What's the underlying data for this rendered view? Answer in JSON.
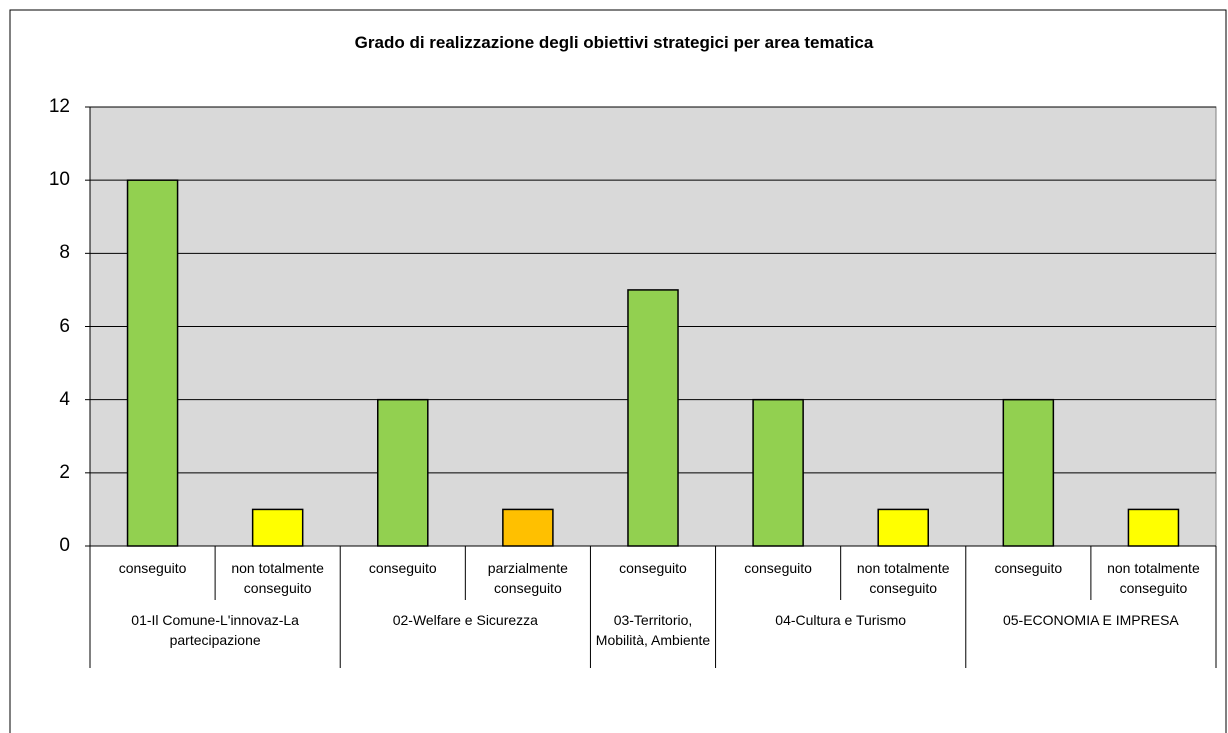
{
  "chart_data": {
    "type": "bar",
    "title": "Grado di realizzazione degli obiettivi strategici per area tematica",
    "groups": [
      {
        "name": "01-Il Comune-L'innovaz-La partecipazione",
        "categories": [
          "conseguito",
          "non totalmente conseguito"
        ],
        "values": [
          10,
          1
        ],
        "colors": [
          "#92d050",
          "#ffff00"
        ]
      },
      {
        "name": "02-Welfare e Sicurezza",
        "categories": [
          "conseguito",
          "parzialmente conseguito"
        ],
        "values": [
          4,
          1
        ],
        "colors": [
          "#92d050",
          "#ffc000"
        ]
      },
      {
        "name": "03-Territorio, Mobilità, Ambiente",
        "categories": [
          "conseguito"
        ],
        "values": [
          7
        ],
        "colors": [
          "#92d050"
        ]
      },
      {
        "name": "04-Cultura e Turismo",
        "categories": [
          "conseguito",
          "non totalmente conseguito"
        ],
        "values": [
          4,
          1
        ],
        "colors": [
          "#92d050",
          "#ffff00"
        ]
      },
      {
        "name": "05-ECONOMIA E IMPRESA",
        "categories": [
          "conseguito",
          "non totalmente conseguito"
        ],
        "values": [
          4,
          1
        ],
        "colors": [
          "#92d050",
          "#ffff00"
        ]
      }
    ],
    "ylim": [
      0,
      12
    ],
    "yticks": [
      0,
      2,
      4,
      6,
      8,
      10,
      12
    ],
    "grid": true,
    "plot_background": "#d9d9d9"
  }
}
